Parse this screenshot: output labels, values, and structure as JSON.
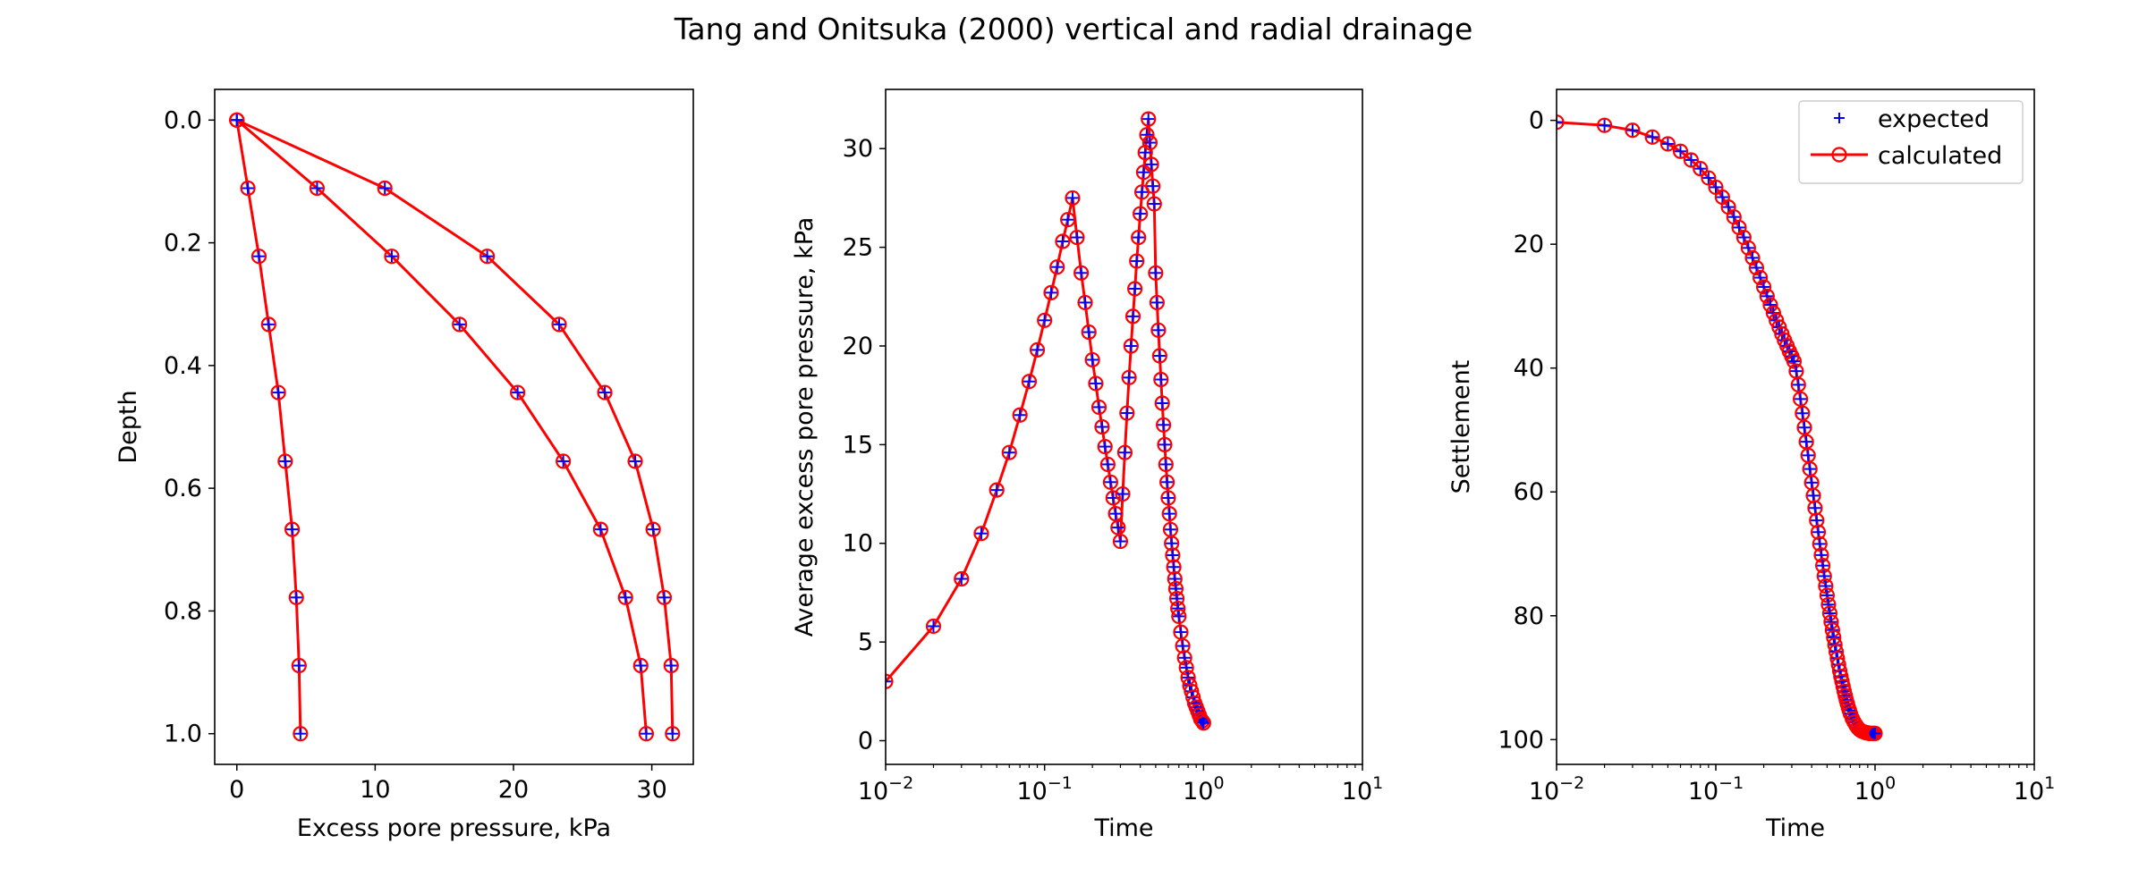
{
  "figure": {
    "title": "Tang and Onitsuka (2000) vertical and radial drainage"
  },
  "colors": {
    "expected": "#0000ff",
    "calculated": "#ff0000",
    "axes": "#000000",
    "background": "#ffffff"
  },
  "chart_data": [
    {
      "type": "line",
      "xlabel": "Excess pore pressure, kPa",
      "ylabel": "Depth",
      "xlim": [
        -1.6,
        33
      ],
      "ylim": [
        1.05,
        -0.05
      ],
      "y_inverted": true,
      "grid": false,
      "xticks": [
        {
          "v": 0,
          "label": "0"
        },
        {
          "v": 10,
          "label": "10"
        },
        {
          "v": 20,
          "label": "20"
        },
        {
          "v": 30,
          "label": "30"
        }
      ],
      "yticks": [
        {
          "v": 0,
          "label": "0.0"
        },
        {
          "v": 0.2,
          "label": "0.2"
        },
        {
          "v": 0.4,
          "label": "0.4"
        },
        {
          "v": 0.6,
          "label": "0.6"
        },
        {
          "v": 0.8,
          "label": "0.8"
        },
        {
          "v": 1.0,
          "label": "1.0"
        }
      ],
      "series": [
        {
          "x": [
            0,
            0.8,
            1.6,
            2.3,
            3.0,
            3.5,
            4.0,
            4.3,
            4.5,
            4.6
          ],
          "y": [
            0,
            0.111,
            0.222,
            0.333,
            0.444,
            0.556,
            0.667,
            0.778,
            0.889,
            1.0
          ]
        },
        {
          "x": [
            0,
            5.8,
            11.2,
            16.1,
            20.3,
            23.6,
            26.3,
            28.1,
            29.2,
            29.6
          ],
          "y": [
            0,
            0.111,
            0.222,
            0.333,
            0.444,
            0.556,
            0.667,
            0.778,
            0.889,
            1.0
          ]
        },
        {
          "x": [
            0,
            10.7,
            18.1,
            23.3,
            26.6,
            28.8,
            30.1,
            30.9,
            31.4,
            31.5
          ],
          "y": [
            0,
            0.111,
            0.222,
            0.333,
            0.444,
            0.556,
            0.667,
            0.778,
            0.889,
            1.0
          ]
        }
      ]
    },
    {
      "type": "line",
      "xlabel": "Time",
      "ylabel": "Average excess pore pressure, kPa",
      "xscale": "log",
      "xlim": [
        0.01,
        10
      ],
      "ylim": [
        -1.2,
        33
      ],
      "grid": false,
      "xticks": [
        {
          "v": 0.01,
          "base": "10",
          "exp": "−2"
        },
        {
          "v": 0.1,
          "base": "10",
          "exp": "−1"
        },
        {
          "v": 1,
          "base": "10",
          "exp": "0"
        },
        {
          "v": 10,
          "base": "10",
          "exp": "1"
        }
      ],
      "yticks": [
        {
          "v": 0,
          "label": "0"
        },
        {
          "v": 5,
          "label": "5"
        },
        {
          "v": 10,
          "label": "10"
        },
        {
          "v": 15,
          "label": "15"
        },
        {
          "v": 20,
          "label": "20"
        },
        {
          "v": 25,
          "label": "25"
        },
        {
          "v": 30,
          "label": "30"
        }
      ],
      "series": [
        {
          "x": [
            0.01,
            0.02,
            0.03,
            0.04,
            0.05,
            0.06,
            0.07,
            0.08,
            0.09,
            0.1,
            0.11,
            0.12,
            0.13,
            0.14,
            0.15,
            0.16,
            0.17,
            0.18,
            0.19,
            0.2,
            0.21,
            0.22,
            0.23,
            0.24,
            0.25,
            0.26,
            0.27,
            0.28,
            0.29,
            0.3,
            0.31,
            0.32,
            0.33,
            0.34,
            0.35,
            0.36,
            0.37,
            0.38,
            0.39,
            0.4,
            0.41,
            0.42,
            0.43,
            0.44,
            0.45,
            0.46,
            0.47,
            0.48,
            0.49,
            0.5,
            0.51,
            0.52,
            0.53,
            0.54,
            0.55,
            0.56,
            0.57,
            0.58,
            0.59,
            0.6,
            0.61,
            0.62,
            0.63,
            0.64,
            0.65,
            0.66,
            0.67,
            0.68,
            0.69,
            0.7,
            0.72,
            0.74,
            0.76,
            0.78,
            0.8,
            0.82,
            0.84,
            0.86,
            0.88,
            0.9,
            0.92,
            0.94,
            0.96,
            0.98,
            1.0
          ],
          "y": [
            3.0,
            5.8,
            8.2,
            10.5,
            12.7,
            14.6,
            16.5,
            18.2,
            19.8,
            21.3,
            22.7,
            24.0,
            25.3,
            26.4,
            27.5,
            25.5,
            23.7,
            22.2,
            20.7,
            19.3,
            18.1,
            16.9,
            15.9,
            14.9,
            14.0,
            13.1,
            12.3,
            11.5,
            10.8,
            10.1,
            12.5,
            14.6,
            16.6,
            18.4,
            20.0,
            21.5,
            22.9,
            24.3,
            25.5,
            26.7,
            27.8,
            28.8,
            29.8,
            30.7,
            31.5,
            30.3,
            29.2,
            28.1,
            27.2,
            23.7,
            22.2,
            20.8,
            19.5,
            18.3,
            17.1,
            16.0,
            15.0,
            14.0,
            13.1,
            12.3,
            11.5,
            10.7,
            10.0,
            9.4,
            8.8,
            8.2,
            7.7,
            7.2,
            6.7,
            6.3,
            5.5,
            4.8,
            4.2,
            3.7,
            3.2,
            2.8,
            2.5,
            2.2,
            1.9,
            1.7,
            1.5,
            1.3,
            1.1,
            1.0,
            0.9
          ]
        }
      ]
    },
    {
      "type": "line",
      "xlabel": "Time",
      "ylabel": "Settlement",
      "xscale": "log",
      "xlim": [
        0.01,
        10
      ],
      "ylim": [
        104,
        -5
      ],
      "y_inverted": true,
      "grid": false,
      "legend": {
        "position": "upper right",
        "entries": [
          "expected",
          "calculated"
        ]
      },
      "xticks": [
        {
          "v": 0.01,
          "base": "10",
          "exp": "−2"
        },
        {
          "v": 0.1,
          "base": "10",
          "exp": "−1"
        },
        {
          "v": 1,
          "base": "10",
          "exp": "0"
        },
        {
          "v": 10,
          "base": "10",
          "exp": "1"
        }
      ],
      "yticks": [
        {
          "v": 0,
          "label": "0"
        },
        {
          "v": 20,
          "label": "20"
        },
        {
          "v": 40,
          "label": "40"
        },
        {
          "v": 60,
          "label": "60"
        },
        {
          "v": 80,
          "label": "80"
        },
        {
          "v": 100,
          "label": "100"
        }
      ],
      "series": [
        {
          "name": "expected",
          "marker": "plus",
          "color": "#0000ff"
        },
        {
          "name": "calculated",
          "marker": "open-circle",
          "line": true,
          "color": "#ff0000",
          "x": [
            0.01,
            0.02,
            0.03,
            0.04,
            0.05,
            0.06,
            0.07,
            0.08,
            0.09,
            0.1,
            0.11,
            0.12,
            0.13,
            0.14,
            0.15,
            0.16,
            0.17,
            0.18,
            0.19,
            0.2,
            0.21,
            0.22,
            0.23,
            0.24,
            0.25,
            0.26,
            0.27,
            0.28,
            0.29,
            0.3,
            0.31,
            0.32,
            0.33,
            0.34,
            0.35,
            0.36,
            0.37,
            0.38,
            0.39,
            0.4,
            0.41,
            0.42,
            0.43,
            0.44,
            0.45,
            0.46,
            0.47,
            0.48,
            0.49,
            0.5,
            0.51,
            0.52,
            0.53,
            0.54,
            0.55,
            0.56,
            0.57,
            0.58,
            0.59,
            0.6,
            0.61,
            0.62,
            0.63,
            0.64,
            0.65,
            0.66,
            0.67,
            0.68,
            0.69,
            0.7,
            0.72,
            0.74,
            0.76,
            0.78,
            0.8,
            0.82,
            0.84,
            0.86,
            0.88,
            0.9,
            0.92,
            0.94,
            0.96,
            0.98,
            1.0
          ],
          "y": [
            0.3,
            0.8,
            1.6,
            2.7,
            3.8,
            5.0,
            6.4,
            7.8,
            9.3,
            10.8,
            12.4,
            14.0,
            15.6,
            17.3,
            18.9,
            20.6,
            22.2,
            23.8,
            25.4,
            26.9,
            28.4,
            29.8,
            31.1,
            32.3,
            33.4,
            34.5,
            35.5,
            36.4,
            37.3,
            38.1,
            38.9,
            40.5,
            42.7,
            45.0,
            47.3,
            49.6,
            51.9,
            54.1,
            56.3,
            58.5,
            60.6,
            62.6,
            64.6,
            66.5,
            68.4,
            70.2,
            71.9,
            73.6,
            75.2,
            76.7,
            78.2,
            79.6,
            81.0,
            82.3,
            83.5,
            84.7,
            85.8,
            86.9,
            87.9,
            88.9,
            89.8,
            90.6,
            91.4,
            92.2,
            92.9,
            93.6,
            94.2,
            94.8,
            95.3,
            95.8,
            96.6,
            97.2,
            97.7,
            98.1,
            98.4,
            98.6,
            98.7,
            98.8,
            98.9,
            98.9,
            99.0,
            99.0,
            99.0,
            99.0,
            99.0
          ]
        }
      ]
    }
  ]
}
